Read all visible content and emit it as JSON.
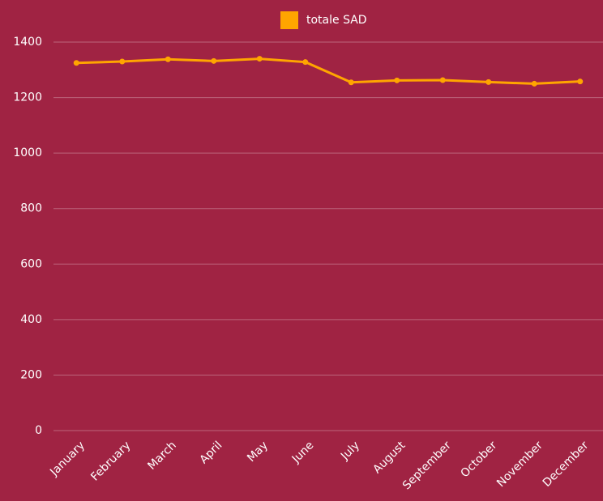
{
  "chart_data": {
    "type": "line",
    "categories": [
      "January",
      "February",
      "March",
      "April",
      "May",
      "June",
      "July",
      "August",
      "September",
      "October",
      "November",
      "December"
    ],
    "series": [
      {
        "name": "totale SAD",
        "color": "#ffa500",
        "values": [
          1325,
          1330,
          1338,
          1332,
          1340,
          1328,
          1255,
          1262,
          1263,
          1256,
          1250,
          1258
        ]
      }
    ],
    "ylim": [
      0,
      1400
    ],
    "yticks": [
      0,
      200,
      400,
      600,
      800,
      1000,
      1200,
      1400
    ],
    "grid": true,
    "legend": "top"
  }
}
